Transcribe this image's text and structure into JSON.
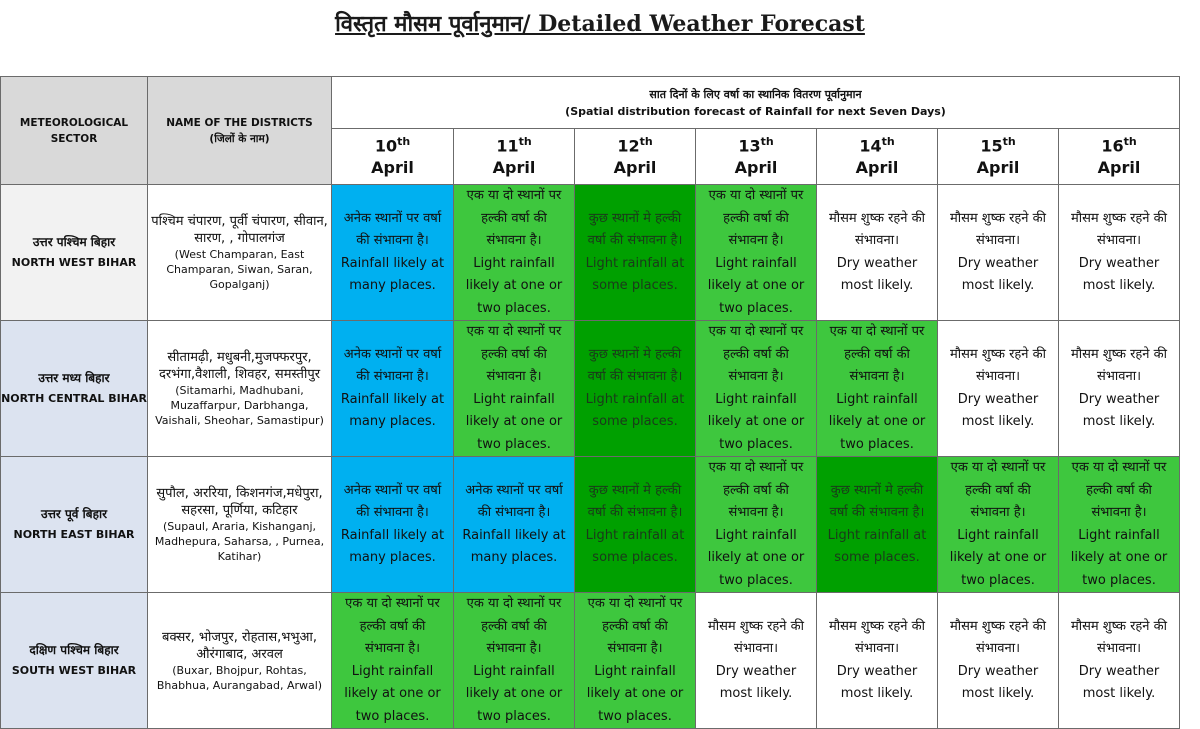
{
  "title": "विस्तृत मौसम पूर्वानुमान/ Detailed Weather Forecast",
  "headers": {
    "sector": "METEOROLOGICAL SECTOR",
    "district_en": "NAME OF THE DISTRICTS",
    "district_hi": "(जिलों के नाम)",
    "span_hi": "सात दिनों के लिए वर्षा का स्थानिक वितरण पूर्वानुमान",
    "span_en": "(Spatial distribution forecast of Rainfall for next Seven Days)"
  },
  "days": [
    {
      "num": "10",
      "suffix": "th",
      "month": "April"
    },
    {
      "num": "11",
      "suffix": "th",
      "month": "April"
    },
    {
      "num": "12",
      "suffix": "th",
      "month": "April"
    },
    {
      "num": "13",
      "suffix": "th",
      "month": "April"
    },
    {
      "num": "14",
      "suffix": "th",
      "month": "April"
    },
    {
      "num": "15",
      "suffix": "th",
      "month": "April"
    },
    {
      "num": "16",
      "suffix": "th",
      "month": "April"
    }
  ],
  "legend_texts": {
    "many": {
      "hi": "अनेक स्थानों पर वर्षा की संभावना है।",
      "en": "Rainfall likely at many places."
    },
    "few": {
      "hi": "एक या दो स्थानों पर हल्की वर्षा की संभावना है।",
      "en": "Light rainfall likely at one or two places."
    },
    "some": {
      "hi": "कुछ स्थानों मे हल्की वर्षा की संभावना है।",
      "en": "Light rainfall at some places."
    },
    "dry": {
      "hi": "मौसम शुष्क रहने की संभावना।",
      "en": "Dry weather most likely."
    }
  },
  "colors": {
    "many": "#00b0f0",
    "few": "#3ec73e",
    "some": "#00a000",
    "dry": "#ffffff"
  },
  "rows": [
    {
      "sector_hi": "उत्तर पश्चिम बिहार",
      "sector_en": "NORTH WEST BIHAR",
      "districts_hi": "पश्चिम चंपारण, पूर्वी चंपारण, सीवान, सारण, , गोपालगंज",
      "districts_en": "(West Champaran, East Champaran, Siwan, Saran, Gopalganj)",
      "forecast": [
        "many",
        "few",
        "some",
        "few",
        "dry",
        "dry",
        "dry"
      ]
    },
    {
      "sector_hi": "उत्तर मध्य बिहार",
      "sector_en": "NORTH CENTRAL BIHAR",
      "districts_hi": "सीतामढ़ी, मधुबनी,मुजफ्फरपुर, दरभंगा,वैशाली, शिवहर, समस्तीपुर",
      "districts_en": "(Sitamarhi, Madhubani, Muzaffarpur, Darbhanga, Vaishali, Sheohar, Samastipur)",
      "forecast": [
        "many",
        "few",
        "some",
        "few",
        "few",
        "dry",
        "dry"
      ]
    },
    {
      "sector_hi": "उत्तर पूर्व बिहार",
      "sector_en": "NORTH EAST BIHAR",
      "districts_hi": "सुपौल, अररिया, किशनगंज,मधेपुरा, सहरसा, पूर्णिया, कटिहार",
      "districts_en": "(Supaul, Araria, Kishanganj, Madhepura, Saharsa, , Purnea, Katihar)",
      "forecast": [
        "many",
        "many",
        "some",
        "few",
        "some",
        "few",
        "few"
      ]
    },
    {
      "sector_hi": "दक्षिण पश्चिम बिहार",
      "sector_en": "SOUTH WEST BIHAR",
      "districts_hi": "बक्सर, भोजपुर, रोहतास,भभुआ, औरंगाबाद, अरवल",
      "districts_en": "(Buxar, Bhojpur, Rohtas, Bhabhua, Aurangabad, Arwal)",
      "forecast": [
        "few",
        "few",
        "few",
        "dry",
        "dry",
        "dry",
        "dry"
      ]
    }
  ]
}
